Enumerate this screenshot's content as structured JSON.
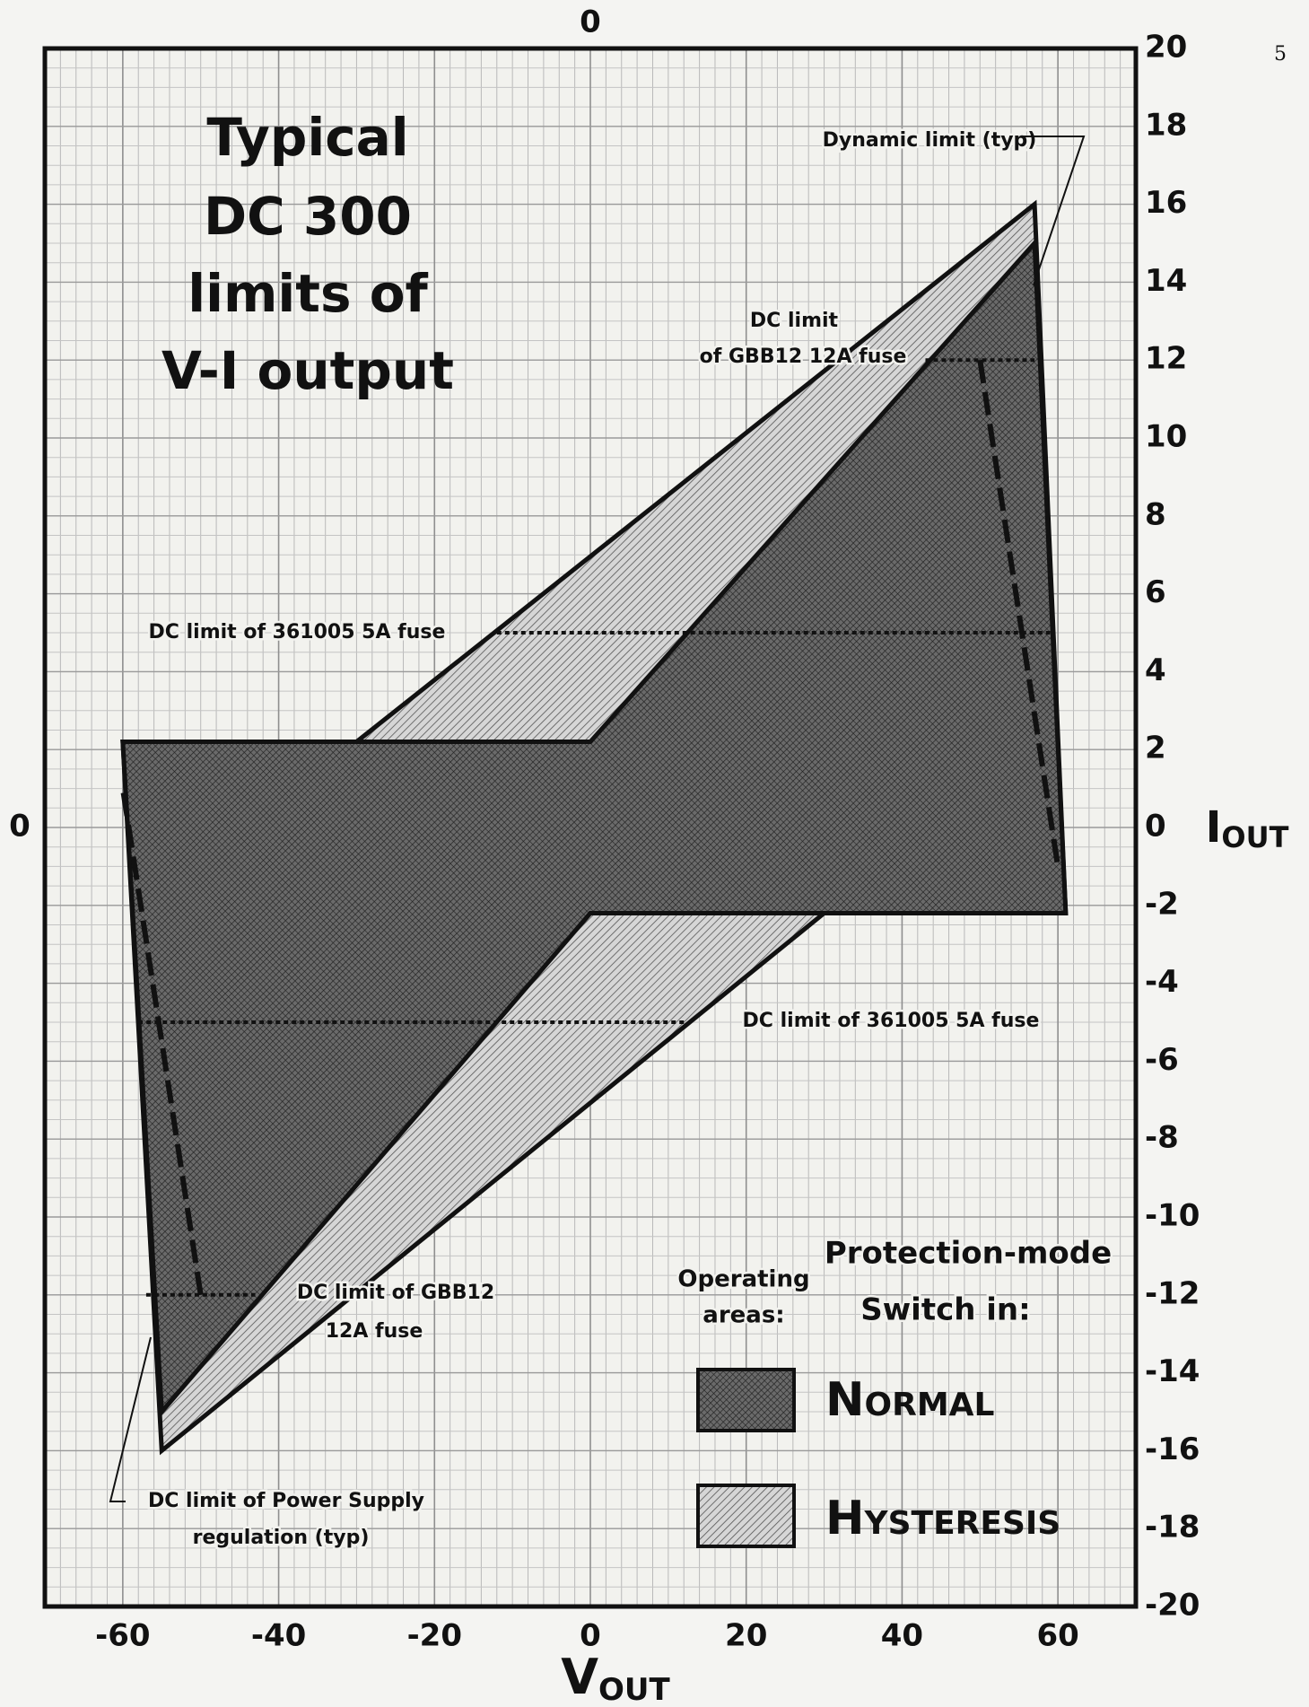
{
  "page_number": "5",
  "chart_data": {
    "type": "polygon",
    "title_lines": [
      "Typical",
      "DC 300",
      "limits of",
      "V-I output"
    ],
    "x_label": "V",
    "x_label_sub": "OUT",
    "y_label": "I",
    "y_label_sub": "OUT",
    "xlim": [
      -70,
      70
    ],
    "ylim": [
      -20,
      20
    ],
    "xticks": [
      -60,
      -40,
      -20,
      0,
      20,
      40,
      60
    ],
    "yticks": [
      -20,
      -18,
      -16,
      -14,
      -12,
      -10,
      -8,
      -6,
      -4,
      -2,
      0,
      2,
      4,
      6,
      8,
      10,
      12,
      14,
      16,
      18,
      20
    ],
    "xticks_top": [
      0
    ],
    "yticks_left": [
      0
    ],
    "grid": true,
    "grid_minor_step_x": 2,
    "grid_minor_step_y": 0.5,
    "legend_heading": [
      "Operating",
      "areas:"
    ],
    "legend_title": [
      "Protection-mode",
      "Switch in:"
    ],
    "series": [
      {
        "name": "Hysteresis",
        "color": "#b8b8b8",
        "x": [
          -60,
          -30,
          57,
          61,
          30,
          -55
        ],
        "values": [
          2.2,
          2.2,
          16,
          -2.2,
          -2.2,
          -16
        ]
      },
      {
        "name": "Normal",
        "color": "#5a5a5a",
        "x": [
          -60,
          0,
          57,
          61,
          0,
          -55
        ],
        "values": [
          2.2,
          2.2,
          15,
          -2.2,
          -2.2,
          -15
        ]
      }
    ],
    "limit_lines": [
      {
        "x": [
          -12,
          59
        ],
        "values": [
          5,
          5
        ]
      },
      {
        "x": [
          -58,
          12
        ],
        "values": [
          -5,
          -5
        ]
      },
      {
        "x": [
          43,
          57
        ],
        "values": [
          12,
          12
        ]
      },
      {
        "x": [
          50,
          60
        ],
        "values": [
          12,
          -1
        ]
      },
      {
        "x": [
          -57,
          -43
        ],
        "values": [
          -12,
          -12
        ]
      },
      {
        "x": [
          -50,
          -60
        ],
        "values": [
          -12,
          1
        ]
      }
    ],
    "annotations": [
      "Dynamic limit (typ)",
      "DC limit",
      "of GBB12 12A fuse",
      "DC limit of 361005 5A fuse",
      "DC limit of 361005 5A fuse",
      "DC limit of GBB12",
      "12A fuse",
      "DC limit of Power Supply",
      "regulation (typ)"
    ]
  }
}
